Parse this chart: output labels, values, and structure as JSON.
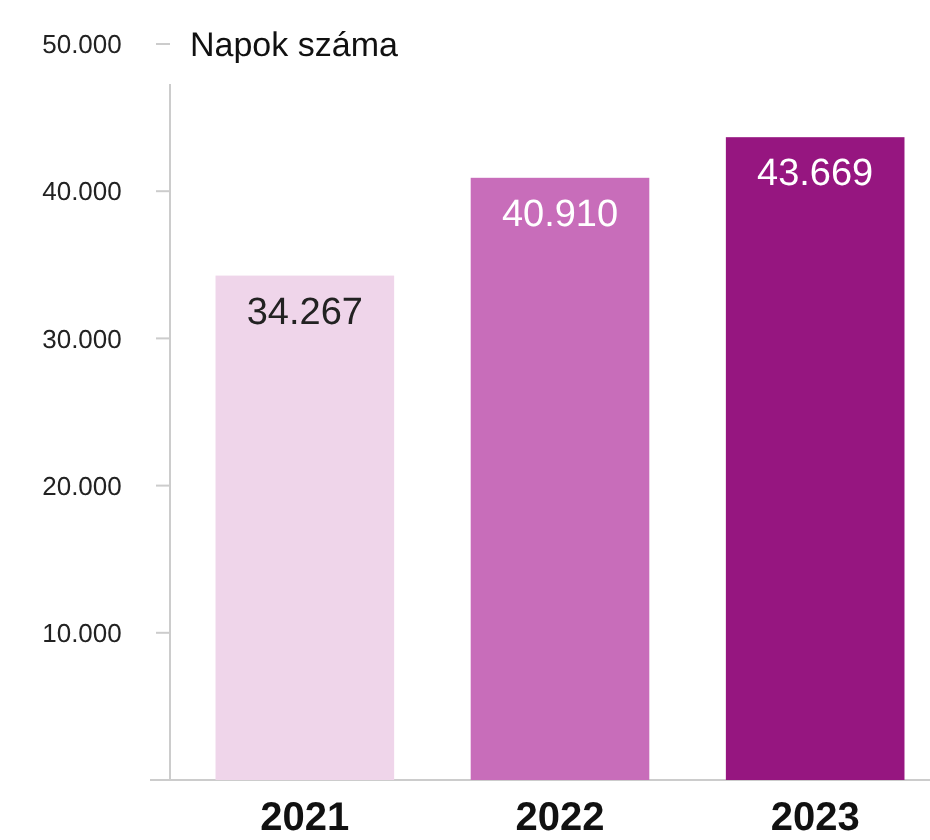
{
  "chart_data": {
    "type": "bar",
    "title": "Napok száma",
    "categories": [
      "2021",
      "2022",
      "2023"
    ],
    "values": [
      34267,
      40910,
      43669
    ],
    "colors": [
      "#efd5ea",
      "#c86dba",
      "#961680"
    ],
    "value_labels": [
      "34.267",
      "40.910",
      "43.669"
    ],
    "ylim": [
      0,
      50000
    ],
    "yticks": [
      {
        "value": 10000,
        "label": "10.000"
      },
      {
        "value": 20000,
        "label": "20.000"
      },
      {
        "value": 30000,
        "label": "30.000"
      },
      {
        "value": 40000,
        "label": "40.000"
      },
      {
        "value": 50000,
        "label": "50.000"
      }
    ],
    "grid": false
  }
}
